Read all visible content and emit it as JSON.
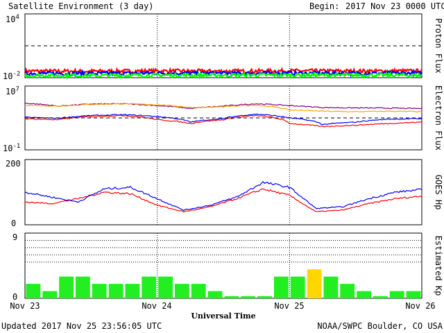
{
  "header": {
    "title": "Satellite Environment (3 day)",
    "begin_label": "Begin:",
    "begin_value": "2017 Nov 23 0000 UTC"
  },
  "footer": {
    "updated": "Updated 2017 Nov 25 23:56:05 UTC",
    "credit": "NOAA/SWPC Boulder, CO USA",
    "xlabel": "Universal Time"
  },
  "x_ticks": [
    "Nov 23",
    "Nov 24",
    "Nov 25",
    "Nov 26"
  ],
  "chart_data": [
    {
      "type": "line",
      "panel": "proton",
      "ylabel": "Proton Flux",
      "yscale": "log",
      "ylim": [
        0.01,
        10000
      ],
      "tick_labels": [
        "10^4",
        "10^-2"
      ],
      "threshold": 10,
      "x_days": [
        0,
        3
      ],
      "series": [
        {
          "color": "#ff0000",
          "x": [
            0,
            0.5,
            1,
            1.5,
            2,
            2.5,
            3
          ],
          "y": [
            0.042,
            0.04,
            0.043,
            0.041,
            0.044,
            0.042,
            0.043
          ]
        },
        {
          "color": "#0000ff",
          "x": [
            0,
            0.5,
            1,
            1.5,
            2,
            2.5,
            3
          ],
          "y": [
            0.026,
            0.025,
            0.027,
            0.026,
            0.027,
            0.026,
            0.027
          ]
        },
        {
          "color": "#00ff00",
          "x": [
            0,
            0.5,
            1,
            1.5,
            2,
            2.5,
            3
          ],
          "y": [
            0.017,
            0.016,
            0.017,
            0.017,
            0.018,
            0.017,
            0.017
          ]
        }
      ]
    },
    {
      "type": "line",
      "panel": "electron",
      "ylabel": "Electron Flux",
      "yscale": "log",
      "ylim": [
        0.1,
        10000000
      ],
      "tick_labels": [
        "10^7",
        "10^-1"
      ],
      "threshold": 1000,
      "x_days": [
        0,
        3
      ],
      "series": [
        {
          "color": "#800080",
          "x": [
            0,
            0.25,
            0.5,
            0.75,
            1,
            1.25,
            1.5,
            1.75,
            2,
            2.25,
            2.5,
            2.75,
            3
          ],
          "y": [
            70000,
            30000,
            55000,
            60000,
            35000,
            15000,
            30000,
            60000,
            35000,
            20000,
            18000,
            17000,
            15000
          ]
        },
        {
          "color": "#ffa500",
          "x": [
            0,
            0.25,
            0.5,
            0.75,
            1,
            1.25,
            1.5,
            1.75,
            2,
            2.25,
            2.5,
            2.75,
            3
          ],
          "y": [
            40000,
            30000,
            50000,
            60000,
            45000,
            20000,
            25000,
            40000,
            10000,
            7000,
            6000,
            7000,
            6000
          ]
        },
        {
          "color": "#0000ff",
          "x": [
            0,
            0.25,
            0.5,
            0.75,
            1,
            1.25,
            1.5,
            1.75,
            2,
            2.25,
            2.5,
            2.75,
            3
          ],
          "y": [
            1200,
            900,
            2000,
            2500,
            1500,
            300,
            800,
            3000,
            1000,
            150,
            300,
            700,
            800
          ]
        },
        {
          "color": "#ff0000",
          "x": [
            0,
            0.25,
            0.5,
            0.75,
            1,
            1.25,
            1.5,
            1.75,
            2,
            2.25,
            2.5,
            2.75,
            3
          ],
          "y": [
            800,
            600,
            1500,
            2000,
            600,
            200,
            600,
            2000,
            200,
            80,
            120,
            200,
            300
          ]
        }
      ]
    },
    {
      "type": "line",
      "panel": "goes_hp",
      "ylabel": "GOES Hp",
      "ylim": [
        0,
        200
      ],
      "tick_labels": [
        "200",
        "0"
      ],
      "x_days": [
        0,
        3
      ],
      "series": [
        {
          "color": "#ff0000",
          "x": [
            0,
            0.2,
            0.4,
            0.6,
            0.8,
            1,
            1.2,
            1.4,
            1.6,
            1.8,
            2,
            2.2,
            2.4,
            2.6,
            2.8,
            3
          ],
          "y": [
            70,
            65,
            80,
            100,
            95,
            60,
            40,
            55,
            80,
            110,
            90,
            40,
            45,
            65,
            80,
            88
          ]
        },
        {
          "color": "#0000ff",
          "x": [
            0,
            0.2,
            0.4,
            0.6,
            0.8,
            1,
            1.2,
            1.4,
            1.6,
            1.8,
            2,
            2.2,
            2.4,
            2.6,
            2.8,
            3
          ],
          "y": [
            100,
            85,
            70,
            110,
            115,
            80,
            45,
            60,
            85,
            130,
            115,
            50,
            55,
            80,
            100,
            108
          ]
        }
      ]
    },
    {
      "type": "bar",
      "panel": "kp",
      "ylabel": "Estimated Kp",
      "ylim": [
        0,
        9
      ],
      "tick_labels": [
        "9",
        "0"
      ],
      "grid_levels": [
        5,
        6,
        7,
        8,
        9
      ],
      "bar_hours": 3,
      "values": [
        2,
        1,
        3,
        3,
        2,
        2,
        2,
        3,
        3,
        2,
        2,
        1,
        0.3,
        0.3,
        0.3,
        3,
        3,
        4,
        3,
        2,
        1,
        0.3,
        1,
        1
      ],
      "colors": {
        "normal": "#22ee22",
        "active": "#ffd700"
      },
      "active_threshold": 4
    }
  ]
}
